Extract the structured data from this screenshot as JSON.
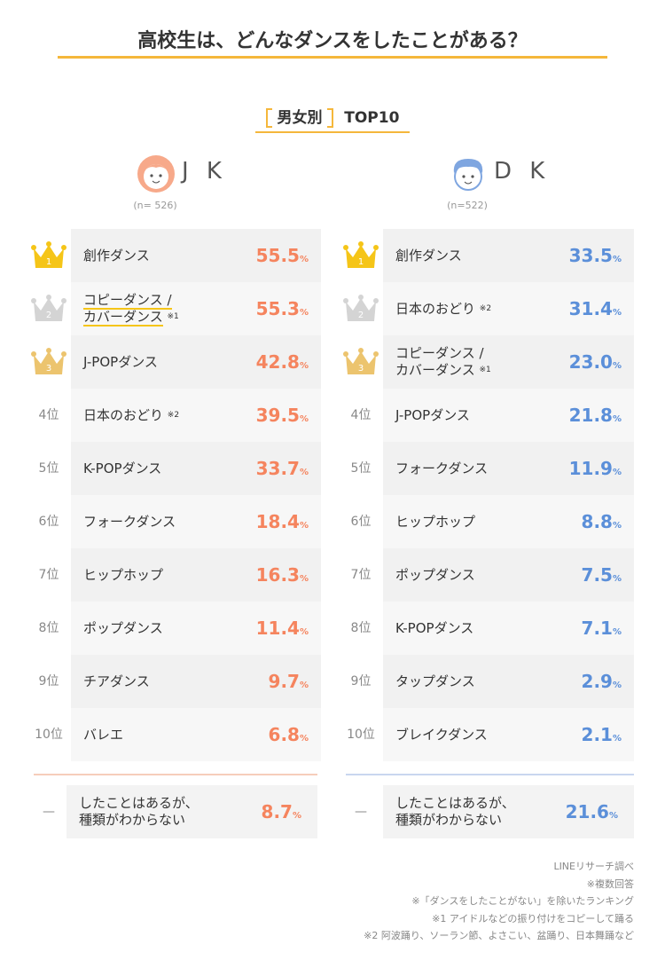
{
  "title": "高校生は、どんなダンスをしたことがある？",
  "subtitle": {
    "label": "男女別",
    "suffix": "TOP10"
  },
  "unit": "%",
  "columns": [
    {
      "name": "J K",
      "n": "(n= 526)",
      "color": "#f5845e",
      "line": "#f6cdbb",
      "rows": [
        {
          "rank": "1",
          "label": [
            "創作ダンス"
          ],
          "value": "55.5"
        },
        {
          "rank": "2",
          "label": [
            "コピーダンス /",
            "カバーダンス"
          ],
          "note": "※1",
          "value": "55.3",
          "highlight": true
        },
        {
          "rank": "3",
          "label": [
            "J-POPダンス"
          ],
          "value": "42.8"
        },
        {
          "rank": "4位",
          "label": [
            "日本のおどり"
          ],
          "note": "※2",
          "value": "39.5"
        },
        {
          "rank": "5位",
          "label": [
            "K-POPダンス"
          ],
          "value": "33.7"
        },
        {
          "rank": "6位",
          "label": [
            "フォークダンス"
          ],
          "value": "18.4"
        },
        {
          "rank": "7位",
          "label": [
            "ヒップホップ"
          ],
          "value": "16.3"
        },
        {
          "rank": "8位",
          "label": [
            "ポップダンス"
          ],
          "value": "11.4"
        },
        {
          "rank": "9位",
          "label": [
            "チアダンス"
          ],
          "value": "9.7"
        },
        {
          "rank": "10位",
          "label": [
            "バレエ"
          ],
          "value": "6.8"
        }
      ],
      "other": {
        "rank": "—",
        "label": [
          "したことはあるが、",
          "種類がわからない"
        ],
        "value": "8.7"
      }
    },
    {
      "name": "D K",
      "n": "(n=522)",
      "color": "#5b8fd9",
      "line": "#c9d6ef",
      "rows": [
        {
          "rank": "1",
          "label": [
            "創作ダンス"
          ],
          "value": "33.5"
        },
        {
          "rank": "2",
          "label": [
            "日本のおどり"
          ],
          "note": "※2",
          "value": "31.4"
        },
        {
          "rank": "3",
          "label": [
            "コピーダンス /",
            "カバーダンス"
          ],
          "note": "※1",
          "value": "23.0"
        },
        {
          "rank": "4位",
          "label": [
            "J-POPダンス"
          ],
          "value": "21.8"
        },
        {
          "rank": "5位",
          "label": [
            "フォークダンス"
          ],
          "value": "11.9"
        },
        {
          "rank": "6位",
          "label": [
            "ヒップホップ"
          ],
          "value": "8.8"
        },
        {
          "rank": "7位",
          "label": [
            "ポップダンス"
          ],
          "value": "7.5"
        },
        {
          "rank": "8位",
          "label": [
            "K-POPダンス"
          ],
          "value": "7.1"
        },
        {
          "rank": "9位",
          "label": [
            "タップダンス"
          ],
          "value": "2.9"
        },
        {
          "rank": "10位",
          "label": [
            "ブレイクダンス"
          ],
          "value": "2.1"
        }
      ],
      "other": {
        "rank": "—",
        "label": [
          "したことはあるが、",
          "種類がわからない"
        ],
        "value": "21.6"
      }
    }
  ],
  "footnotes": [
    "LINEリサーチ調べ",
    "※複数回答",
    "※「ダンスをしたことがない」を除いたランキング",
    "※1 アイドルなどの振り付けをコピーして踊る",
    "※2 阿波踊り、ソーラン節、よさこい、盆踊り、日本舞踊など"
  ]
}
